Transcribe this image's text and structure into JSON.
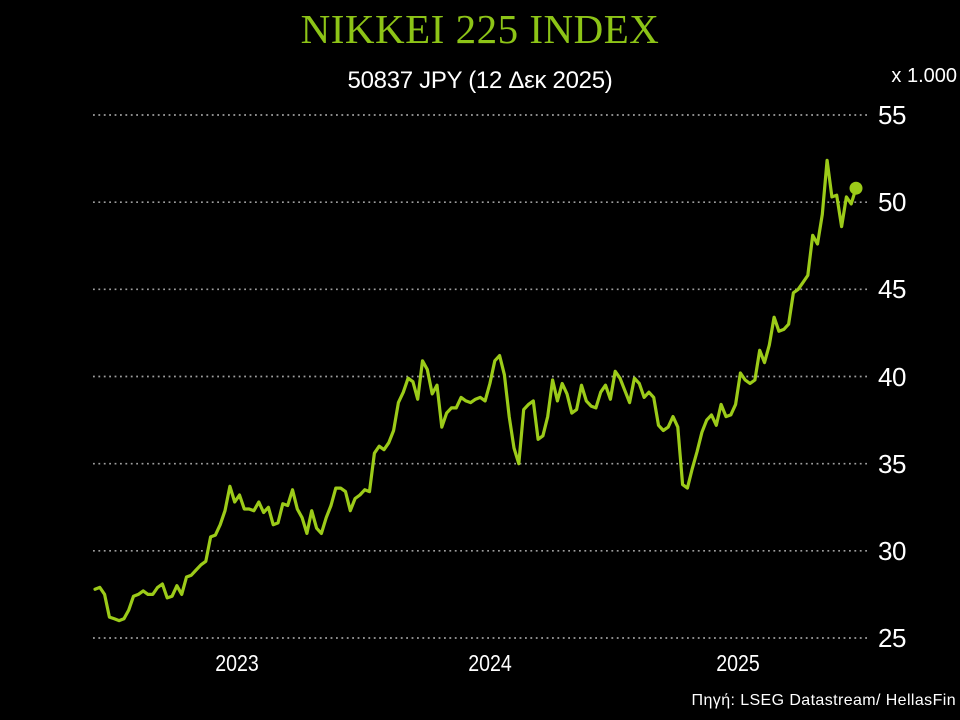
{
  "header": {
    "title": "NIKKEI 225 INDEX",
    "subtitle": "50837 JPY (12 Δεκ 2025)"
  },
  "axes": {
    "unit_label": "x 1.000",
    "y_tick_labels": [
      "55",
      "50",
      "45",
      "40",
      "35",
      "30",
      "25"
    ],
    "x_tick_labels": [
      "2023",
      "2024",
      "2025"
    ]
  },
  "footer": {
    "source": "Πηγή: LSEG Datastream/ HellasFin"
  },
  "colors": {
    "background": "#000000",
    "title_text": "#8DC417",
    "line": "#9CCB19",
    "text": "#FFFFFF",
    "grid": "#9E9E9E"
  },
  "chart_data": {
    "type": "line",
    "title": "NIKKEI 225 INDEX",
    "subtitle": "50837 JPY (12 Δεκ 2025)",
    "ylabel": "x 1.000 JPY",
    "xlabel": "",
    "ylim": [
      25,
      55
    ],
    "y_ticks": [
      55,
      50,
      45,
      40,
      35,
      30,
      25
    ],
    "x_tick_labels": [
      "2023",
      "2024",
      "2025"
    ],
    "grid": "horizontal dotted",
    "legend": "none",
    "frequency": "weekly",
    "x_start": "2022-12-02",
    "x_end": "2025-12-12",
    "last_value_jpy": 50837,
    "last_point_marker": true,
    "series_name": "Nikkei 225 (thousands of JPY)",
    "values": [
      27.8,
      27.9,
      27.5,
      26.2,
      26.1,
      26.0,
      26.1,
      26.6,
      27.4,
      27.5,
      27.7,
      27.5,
      27.5,
      27.9,
      28.1,
      27.3,
      27.4,
      28.0,
      27.5,
      28.5,
      28.6,
      28.9,
      29.2,
      29.4,
      30.8,
      30.9,
      31.5,
      32.3,
      33.7,
      32.8,
      33.2,
      32.4,
      32.4,
      32.3,
      32.8,
      32.2,
      32.5,
      31.5,
      31.6,
      32.7,
      32.6,
      33.5,
      32.4,
      31.9,
      31.0,
      32.3,
      31.3,
      31.0,
      31.9,
      32.6,
      33.6,
      33.6,
      33.4,
      32.3,
      33.0,
      33.2,
      33.5,
      33.4,
      35.6,
      36.0,
      35.8,
      36.2,
      36.9,
      38.5,
      39.1,
      39.9,
      39.7,
      38.7,
      40.9,
      40.4,
      39.0,
      39.5,
      37.1,
      37.9,
      38.2,
      38.2,
      38.8,
      38.6,
      38.5,
      38.7,
      38.8,
      38.6,
      39.6,
      40.9,
      41.2,
      40.1,
      37.7,
      35.9,
      35.0,
      38.1,
      38.4,
      38.6,
      36.4,
      36.6,
      37.7,
      39.8,
      38.6,
      39.6,
      39.0,
      37.9,
      38.1,
      39.5,
      38.6,
      38.3,
      38.2,
      39.1,
      39.5,
      38.7,
      40.3,
      39.9,
      39.2,
      38.5,
      39.9,
      39.6,
      38.8,
      39.1,
      38.8,
      37.2,
      36.9,
      37.1,
      37.7,
      37.1,
      33.8,
      33.6,
      34.7,
      35.7,
      36.8,
      37.5,
      37.8,
      37.2,
      38.4,
      37.7,
      37.8,
      38.4,
      40.2,
      39.8,
      39.6,
      39.8,
      41.5,
      40.8,
      41.8,
      43.4,
      42.6,
      42.7,
      43.0,
      44.8,
      45.0,
      45.4,
      45.8,
      48.1,
      47.6,
      49.3,
      52.4,
      50.3,
      50.4,
      48.6,
      50.3,
      49.9,
      50.8
    ]
  }
}
